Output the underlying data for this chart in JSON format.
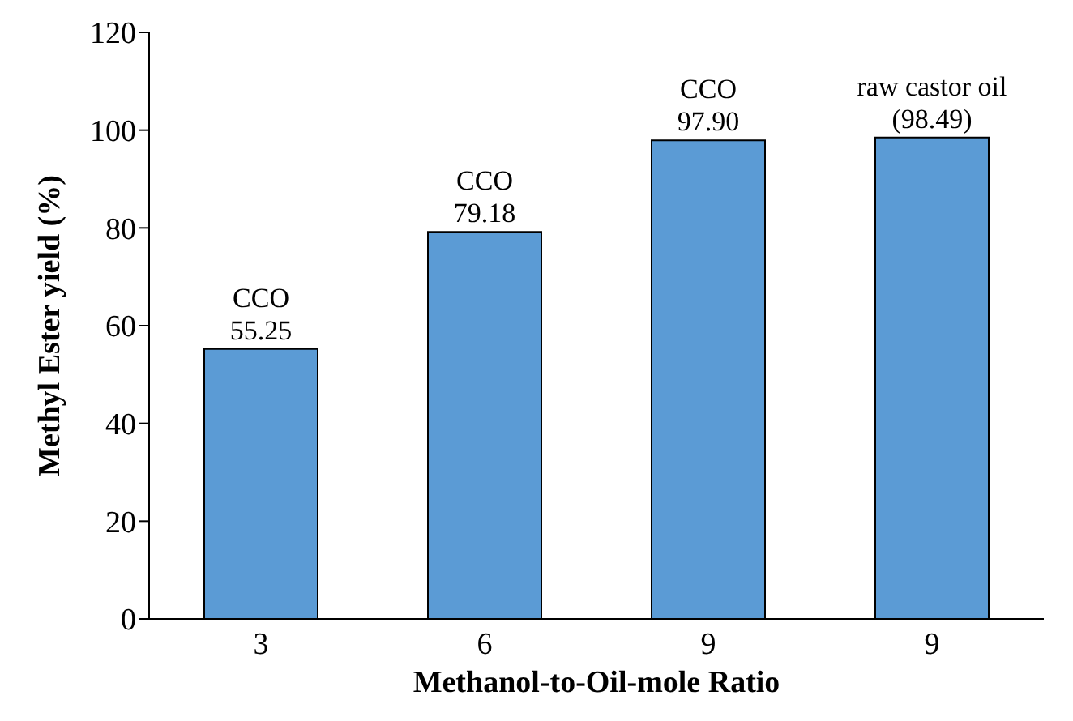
{
  "chart_data": {
    "type": "bar",
    "xlabel": "Methanol-to-Oil-mole Ratio",
    "ylabel": "Methyl Ester yield (%)",
    "categories": [
      "3",
      "6",
      "9",
      "9"
    ],
    "values": [
      55.25,
      79.18,
      97.9,
      98.49
    ],
    "value_labels": [
      "CCO\n55.25",
      "CCO\n79.18",
      "CCO\n97.90",
      "raw castor oil\n(98.49)"
    ],
    "color": "#5b9bd5",
    "ylim": [
      0,
      120
    ],
    "yticks": [
      0,
      20,
      40,
      60,
      80,
      100,
      120
    ],
    "grid": false,
    "legend": false
  }
}
